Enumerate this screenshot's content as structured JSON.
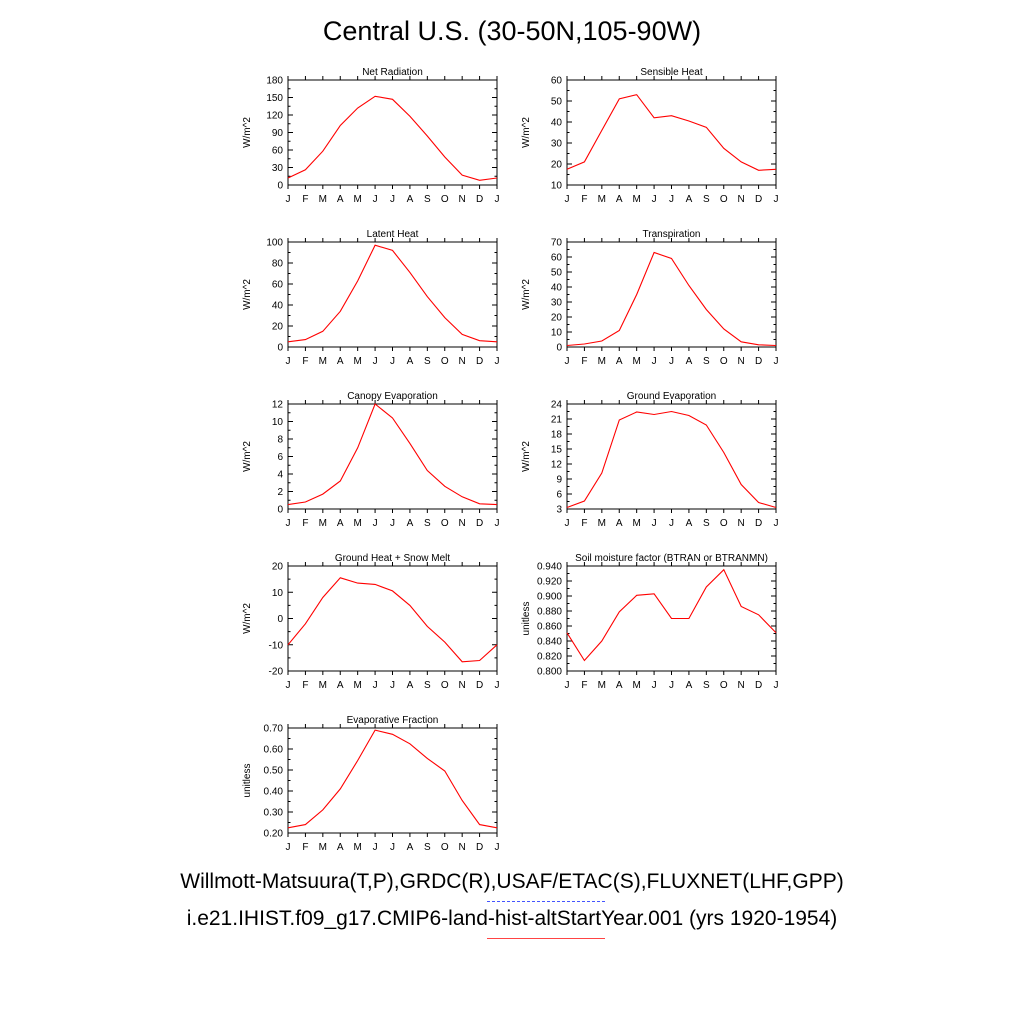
{
  "title": "Central U.S. (30-50N,105-90W)",
  "colors": {
    "model": "#ff0000",
    "observations": "#2233ff",
    "axis": "#000000"
  },
  "legend": {
    "observations_label": "Willmott-Matsuura(T,P),GRDC(R),USAF/ETAC(S),FLUXNET(LHF,GPP)",
    "model_label": "i.e21.IHIST.f09_g17.CMIP6-land-hist-altStartYear.001 (yrs 1920-1954)"
  },
  "chart_data": [
    {
      "type": "line",
      "title": "Net Radiation",
      "ylabel": "W/m^2",
      "x": [
        "J",
        "F",
        "M",
        "A",
        "M",
        "J",
        "J",
        "A",
        "S",
        "O",
        "N",
        "D",
        "J"
      ],
      "ylim": [
        0,
        180
      ],
      "yticks": [
        0,
        30,
        60,
        90,
        120,
        150,
        180
      ],
      "ytick_labels": [
        "0",
        "30",
        "60",
        "90",
        "120",
        "150",
        "180"
      ],
      "series": [
        {
          "values": [
            12,
            26,
            58,
            102,
            132,
            152,
            147,
            118,
            84,
            48,
            17,
            8,
            12
          ]
        }
      ]
    },
    {
      "type": "line",
      "title": "Sensible Heat",
      "ylabel": "W/m^2",
      "x": [
        "J",
        "F",
        "M",
        "A",
        "M",
        "J",
        "J",
        "A",
        "S",
        "O",
        "N",
        "D",
        "J"
      ],
      "ylim": [
        10,
        60
      ],
      "yticks": [
        10,
        20,
        30,
        40,
        50,
        60
      ],
      "ytick_labels": [
        "10",
        "20",
        "30",
        "40",
        "50",
        "60"
      ],
      "series": [
        {
          "values": [
            17.5,
            21,
            36,
            51,
            53,
            42,
            43,
            40.5,
            37.5,
            27.5,
            21,
            17,
            17.5
          ]
        }
      ]
    },
    {
      "type": "line",
      "title": "Latent Heat",
      "ylabel": "W/m^2",
      "x": [
        "J",
        "F",
        "M",
        "A",
        "M",
        "J",
        "J",
        "A",
        "S",
        "O",
        "N",
        "D",
        "J"
      ],
      "ylim": [
        0,
        100
      ],
      "yticks": [
        0,
        20,
        40,
        60,
        80,
        100
      ],
      "ytick_labels": [
        "0",
        "20",
        "40",
        "60",
        "80",
        "100"
      ],
      "series": [
        {
          "values": [
            5,
            7,
            15,
            34,
            63,
            97,
            92,
            71,
            48,
            28,
            12,
            6,
            5
          ]
        }
      ]
    },
    {
      "type": "line",
      "title": "Transpiration",
      "ylabel": "W/m^2",
      "x": [
        "J",
        "F",
        "M",
        "A",
        "M",
        "J",
        "J",
        "A",
        "S",
        "O",
        "N",
        "D",
        "J"
      ],
      "ylim": [
        0,
        70
      ],
      "yticks": [
        0,
        10,
        20,
        30,
        40,
        50,
        60,
        70
      ],
      "ytick_labels": [
        "0",
        "10",
        "20",
        "30",
        "40",
        "50",
        "60",
        "70"
      ],
      "series": [
        {
          "values": [
            1,
            2,
            4,
            11,
            35,
            63,
            59,
            41,
            25,
            12,
            3.5,
            1.5,
            1
          ]
        }
      ]
    },
    {
      "type": "line",
      "title": "Canopy Evaporation",
      "ylabel": "W/m^2",
      "x": [
        "J",
        "F",
        "M",
        "A",
        "M",
        "J",
        "J",
        "A",
        "S",
        "O",
        "N",
        "D",
        "J"
      ],
      "ylim": [
        0,
        12
      ],
      "yticks": [
        0,
        2,
        4,
        6,
        8,
        10,
        12
      ],
      "ytick_labels": [
        "0",
        "2",
        "4",
        "6",
        "8",
        "10",
        "12"
      ],
      "series": [
        {
          "values": [
            0.5,
            0.8,
            1.7,
            3.2,
            7,
            12,
            10.4,
            7.5,
            4.4,
            2.6,
            1.4,
            0.6,
            0.5
          ]
        }
      ]
    },
    {
      "type": "line",
      "title": "Ground Evaporation",
      "ylabel": "W/m^2",
      "x": [
        "J",
        "F",
        "M",
        "A",
        "M",
        "J",
        "J",
        "A",
        "S",
        "O",
        "N",
        "D",
        "J"
      ],
      "ylim": [
        3,
        24
      ],
      "yticks": [
        3,
        6,
        9,
        12,
        15,
        18,
        21,
        24
      ],
      "ytick_labels": [
        "3",
        "6",
        "9",
        "12",
        "15",
        "18",
        "21",
        "24"
      ],
      "series": [
        {
          "values": [
            3.3,
            4.6,
            10.2,
            20.8,
            22.4,
            21.9,
            22.5,
            21.7,
            19.8,
            14.3,
            7.9,
            4.3,
            3.3
          ]
        }
      ]
    },
    {
      "type": "line",
      "title": "Ground Heat + Snow Melt",
      "ylabel": "W/m^2",
      "x": [
        "J",
        "F",
        "M",
        "A",
        "M",
        "J",
        "J",
        "A",
        "S",
        "O",
        "N",
        "D",
        "J"
      ],
      "ylim": [
        -20,
        20
      ],
      "yticks": [
        -20,
        -10,
        0,
        10,
        20
      ],
      "ytick_labels": [
        "-20",
        "-10",
        "0",
        "10",
        "20"
      ],
      "series": [
        {
          "values": [
            -10,
            -2,
            8,
            15.5,
            13.5,
            13,
            10.5,
            5,
            -3,
            -9,
            -16.5,
            -16,
            -10
          ]
        }
      ]
    },
    {
      "type": "line",
      "title": "Soil moisture factor (BTRAN or BTRANMN)",
      "ylabel": "unitless",
      "x": [
        "J",
        "F",
        "M",
        "A",
        "M",
        "J",
        "J",
        "A",
        "S",
        "O",
        "N",
        "D",
        "J"
      ],
      "ylim": [
        0.8,
        0.94
      ],
      "yticks": [
        0.8,
        0.82,
        0.84,
        0.86,
        0.88,
        0.9,
        0.92,
        0.94
      ],
      "ytick_labels": [
        "0.800",
        "0.820",
        "0.840",
        "0.860",
        "0.880",
        "0.900",
        "0.920",
        "0.940"
      ],
      "series": [
        {
          "values": [
            0.851,
            0.814,
            0.84,
            0.879,
            0.901,
            0.903,
            0.87,
            0.87,
            0.912,
            0.935,
            0.886,
            0.875,
            0.851
          ]
        }
      ]
    },
    {
      "type": "line",
      "title": "Evaporative Fraction",
      "ylabel": "unitless",
      "x": [
        "J",
        "F",
        "M",
        "A",
        "M",
        "J",
        "J",
        "A",
        "S",
        "O",
        "N",
        "D",
        "J"
      ],
      "ylim": [
        0.2,
        0.7
      ],
      "yticks": [
        0.2,
        0.3,
        0.4,
        0.5,
        0.6,
        0.7
      ],
      "ytick_labels": [
        "0.20",
        "0.30",
        "0.40",
        "0.50",
        "0.60",
        "0.70"
      ],
      "series": [
        {
          "values": [
            0.225,
            0.24,
            0.31,
            0.41,
            0.545,
            0.69,
            0.67,
            0.625,
            0.555,
            0.495,
            0.355,
            0.24,
            0.225
          ]
        }
      ]
    }
  ]
}
